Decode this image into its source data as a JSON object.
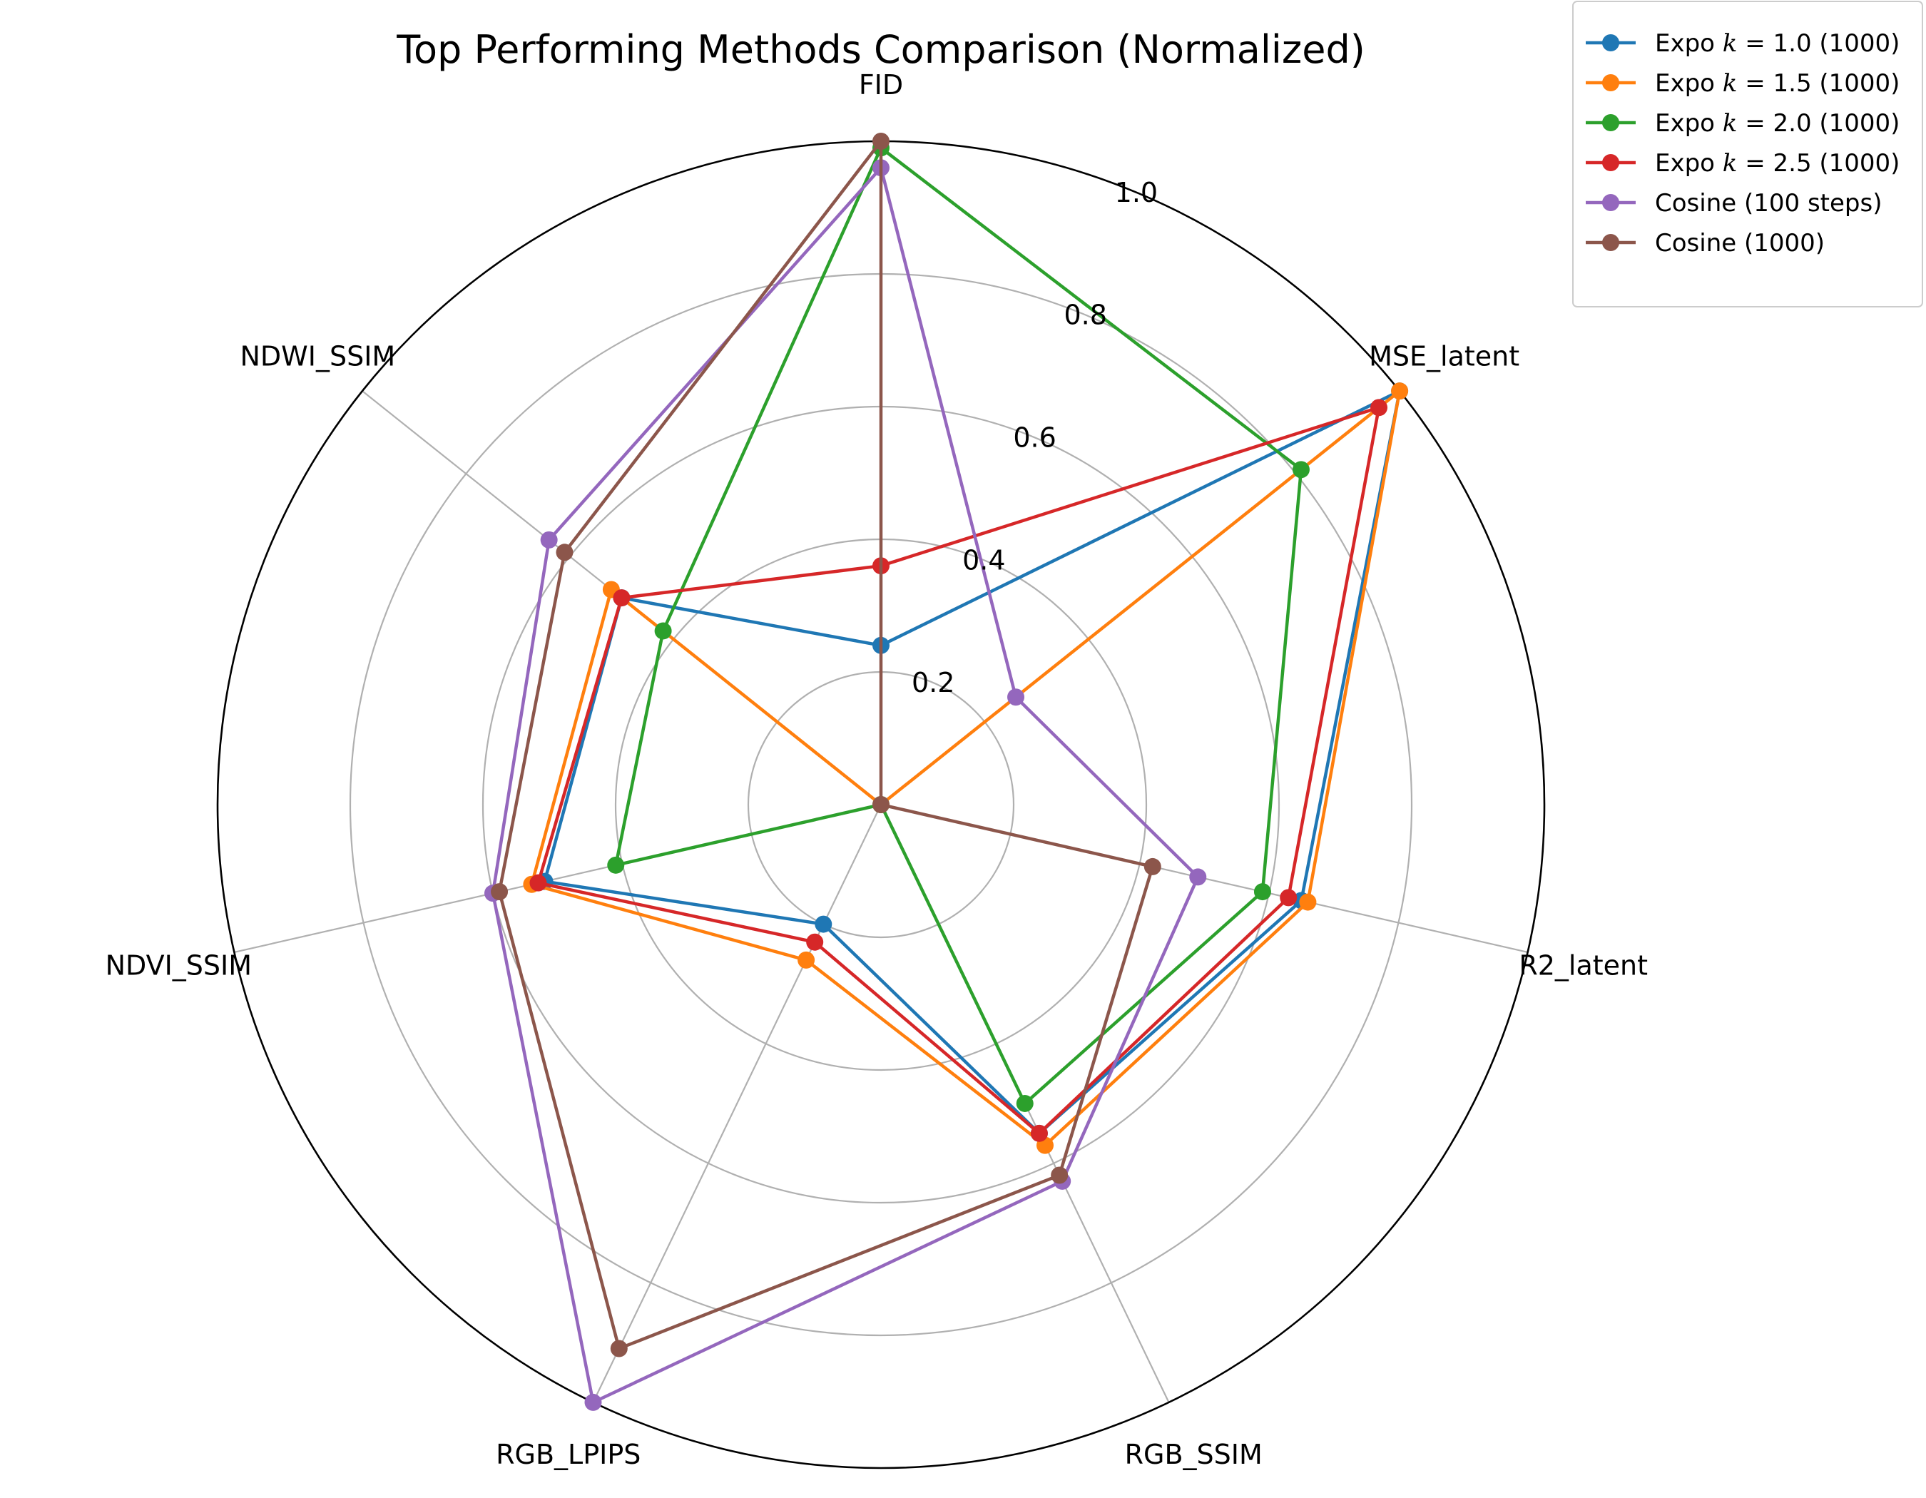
{
  "chart_data": {
    "type": "radar",
    "title": "Top Performing Methods Comparison (Normalized)",
    "axes": [
      "FID",
      "MSE_latent",
      "R2_latent",
      "RGB_SSIM",
      "RGB_LPIPS",
      "NDVI_SSIM",
      "NDWI_SSIM"
    ],
    "rlim": [
      0,
      1.0
    ],
    "rticks": [
      0.2,
      0.4,
      0.6,
      0.8,
      1.0
    ],
    "rtick_labels": [
      "0.2",
      "0.4",
      "0.6",
      "0.8",
      "1.0"
    ],
    "grid": true,
    "legend_position": "top-right (outside)",
    "series": [
      {
        "name": "Expo k = 1.0 (1000)",
        "legend_prefix": "Expo ",
        "legend_math": "k",
        "legend_suffix": " = 1.0 (1000)",
        "color": "#1f77b4",
        "values": [
          0.24,
          1.0,
          0.65,
          0.55,
          0.2,
          0.52,
          0.5
        ]
      },
      {
        "name": "Expo k = 1.5 (1000)",
        "legend_prefix": "Expo ",
        "legend_math": "k",
        "legend_suffix": " = 1.5 (1000)",
        "color": "#ff7f0e",
        "values": [
          0.0,
          1.0,
          0.66,
          0.57,
          0.26,
          0.54,
          0.52
        ]
      },
      {
        "name": "Expo k = 2.0 (1000)",
        "legend_prefix": "Expo ",
        "legend_math": "k",
        "legend_suffix": " = 2.0 (1000)",
        "color": "#2ca02c",
        "values": [
          0.99,
          0.81,
          0.59,
          0.5,
          0.0,
          0.41,
          0.42
        ]
      },
      {
        "name": "Expo k = 2.5 (1000)",
        "legend_prefix": "Expo ",
        "legend_math": "k",
        "legend_suffix": " = 2.5 (1000)",
        "color": "#d62728",
        "values": [
          0.36,
          0.96,
          0.63,
          0.55,
          0.23,
          0.53,
          0.5
        ]
      },
      {
        "name": "Cosine (100 steps)",
        "legend_prefix": "Cosine (100 steps)",
        "legend_math": "",
        "legend_suffix": "",
        "color": "#9467bd",
        "values": [
          0.96,
          0.26,
          0.49,
          0.63,
          1.0,
          0.6,
          0.64
        ]
      },
      {
        "name": "Cosine (1000)",
        "legend_prefix": "Cosine (1000)",
        "legend_math": "",
        "legend_suffix": "",
        "color": "#8c564b",
        "values": [
          1.0,
          0.0,
          0.42,
          0.62,
          0.91,
          0.59,
          0.61
        ]
      }
    ]
  }
}
